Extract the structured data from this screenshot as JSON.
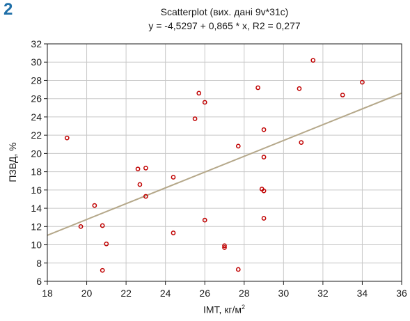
{
  "panel_label": "2",
  "chart_data": {
    "type": "scatter",
    "title": "Scatterplot (вих. дані 9v*31c)",
    "subtitle": "y = -4,5297 + 0,865 * x, R2 = 0,277",
    "xlabel": "ІМТ, кг/м",
    "xlabel_superscript": "2",
    "ylabel": "ПЗВД, %",
    "xlim": [
      18,
      36
    ],
    "ylim": [
      6,
      32
    ],
    "xticks": [
      18,
      20,
      22,
      24,
      26,
      28,
      30,
      32,
      34,
      36
    ],
    "yticks": [
      6,
      8,
      10,
      12,
      14,
      16,
      18,
      20,
      22,
      24,
      26,
      28,
      30,
      32
    ],
    "grid": true,
    "points": [
      {
        "x": 19.0,
        "y": 21.7
      },
      {
        "x": 19.7,
        "y": 12.0
      },
      {
        "x": 20.4,
        "y": 14.3
      },
      {
        "x": 20.8,
        "y": 12.1
      },
      {
        "x": 21.0,
        "y": 10.1
      },
      {
        "x": 20.8,
        "y": 7.2
      },
      {
        "x": 22.6,
        "y": 18.3
      },
      {
        "x": 23.0,
        "y": 18.4
      },
      {
        "x": 22.7,
        "y": 16.6
      },
      {
        "x": 23.0,
        "y": 15.3
      },
      {
        "x": 24.4,
        "y": 17.4
      },
      {
        "x": 24.4,
        "y": 11.3
      },
      {
        "x": 25.5,
        "y": 23.8
      },
      {
        "x": 25.7,
        "y": 26.6
      },
      {
        "x": 26.0,
        "y": 25.6
      },
      {
        "x": 26.0,
        "y": 12.7
      },
      {
        "x": 27.0,
        "y": 9.9
      },
      {
        "x": 27.0,
        "y": 9.7
      },
      {
        "x": 27.7,
        "y": 20.8
      },
      {
        "x": 27.7,
        "y": 7.3
      },
      {
        "x": 28.7,
        "y": 27.2
      },
      {
        "x": 29.0,
        "y": 22.6
      },
      {
        "x": 29.0,
        "y": 19.6
      },
      {
        "x": 28.9,
        "y": 16.1
      },
      {
        "x": 29.0,
        "y": 15.9
      },
      {
        "x": 29.0,
        "y": 12.9
      },
      {
        "x": 30.8,
        "y": 27.1
      },
      {
        "x": 30.9,
        "y": 21.2
      },
      {
        "x": 31.5,
        "y": 30.2
      },
      {
        "x": 33.0,
        "y": 26.4
      },
      {
        "x": 34.0,
        "y": 27.8
      }
    ],
    "regression": {
      "intercept": -4.5297,
      "slope": 0.865
    },
    "colors": {
      "point_stroke": "#c00000",
      "regression_line": "#b5a88a",
      "grid": "#c8c8c8",
      "axes": "#1a1a1a"
    }
  }
}
